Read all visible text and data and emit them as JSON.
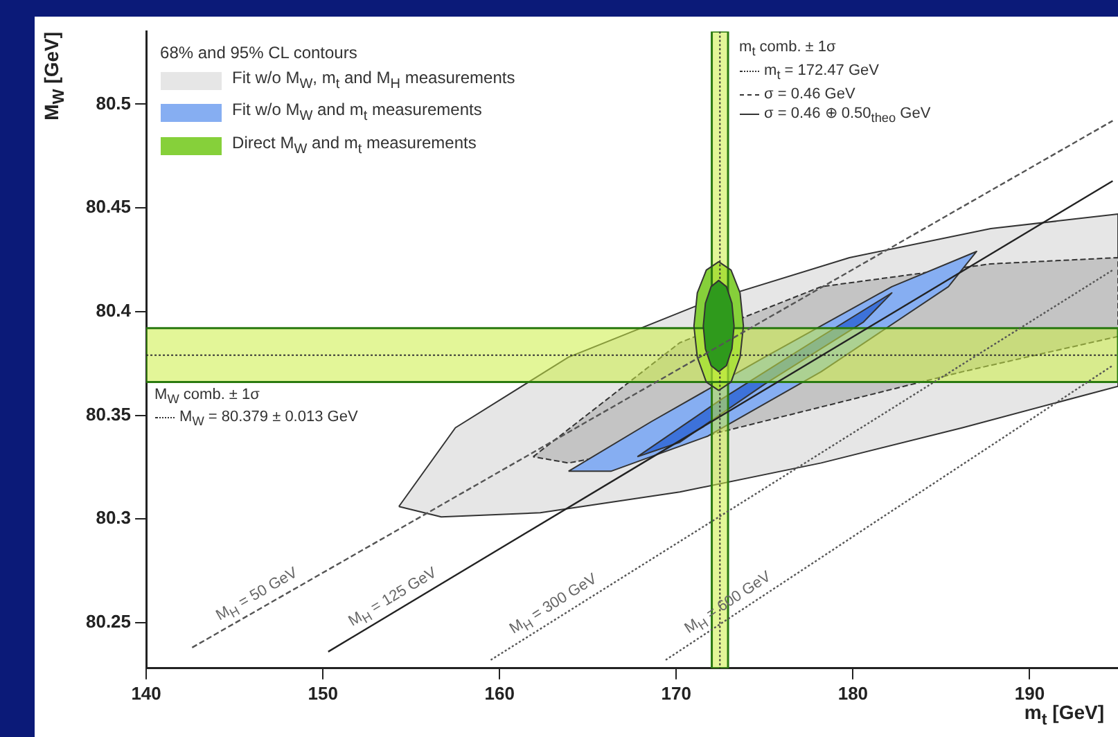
{
  "chart_data": {
    "type": "line",
    "xlabel": "m$_{t}$ [GeV]",
    "ylabel": "M$_{W}$ [GeV]",
    "legend_title": "68% and 95% CL contours",
    "legend": "top left",
    "xlim": [
      140,
      195
    ],
    "ylim": [
      80.228,
      80.535
    ],
    "xticks": [
      140,
      150,
      160,
      170,
      180,
      190
    ],
    "yticks": [
      80.25,
      80.3,
      80.35,
      80.4,
      80.45,
      80.5
    ],
    "series": [
      {
        "type": "area",
        "name": "Fit w/o M$_{W}$, m$_{t}$ and M$_{H}$ measurements",
        "color": "#e6e6e6",
        "line_style": "solid",
        "x": [
          154.3,
          157.5,
          163.9,
          171.8,
          179.8,
          187.8,
          195,
          195,
          186.2,
          178.2,
          170.2,
          162.3,
          156.7
        ],
        "values": [
          80.306,
          80.344,
          80.378,
          80.405,
          80.426,
          80.44,
          80.447,
          80.364,
          80.344,
          80.327,
          80.313,
          80.303,
          80.301
        ]
      },
      {
        "type": "area",
        "color": "#c4c4c4",
        "line_style": "dashed",
        "x": [
          161.9,
          170.2,
          178.2,
          187.8,
          195,
          195,
          186.2,
          178.2,
          170.2,
          163.9
        ],
        "values": [
          80.33,
          80.385,
          80.412,
          80.423,
          80.426,
          80.388,
          80.371,
          80.354,
          80.337,
          80.327
        ]
      },
      {
        "type": "area",
        "name": "Fit w/o M$_{W}$ and m$_{t}$ measurements",
        "color": "#86aef2",
        "line_style": "solid",
        "x": [
          163.9,
          168.6,
          175,
          182.2,
          187,
          185.4,
          178.2,
          171.8,
          166.3
        ],
        "values": [
          80.323,
          80.347,
          80.378,
          80.412,
          80.429,
          80.412,
          80.371,
          80.34,
          80.323
        ]
      },
      {
        "type": "area",
        "color": "#3d72da",
        "line_style": "solid",
        "x": [
          167.8,
          172.6,
          178.2,
          182.2,
          180.6,
          175,
          170.2
        ],
        "values": [
          80.33,
          80.358,
          80.388,
          80.409,
          80.395,
          80.365,
          80.337
        ]
      },
      {
        "type": "area",
        "name": "Direct M$_{W}$ and m$_{t}$ measurements",
        "color": "#86d03a",
        "line_style": "solid",
        "x": [
          173.8,
          173.61,
          173.1,
          172.4,
          171.7,
          171.19,
          171,
          171.19,
          171.7,
          172.4,
          173.1,
          173.61
        ],
        "values": [
          80.393,
          80.409,
          80.42,
          80.424,
          80.42,
          80.409,
          80.393,
          80.378,
          80.366,
          80.362,
          80.366,
          80.378
        ]
      },
      {
        "type": "area",
        "color": "#2f9a1c",
        "line_style": "solid",
        "x": [
          173.27,
          173.15,
          172.84,
          172.4,
          171.97,
          171.65,
          171.53,
          171.65,
          171.97,
          172.4,
          172.84,
          173.15
        ],
        "values": [
          80.393,
          80.404,
          80.412,
          80.415,
          80.412,
          80.404,
          80.393,
          80.382,
          80.374,
          80.371,
          80.374,
          80.382
        ]
      },
      {
        "type": "line",
        "color": "#555555",
        "line_style": "dashed",
        "x": [
          142.6,
          194.7
        ],
        "values": [
          80.238,
          80.492
        ]
      },
      {
        "type": "line",
        "color": "#222222",
        "line_style": "solid",
        "x": [
          150.3,
          194.7
        ],
        "values": [
          80.236,
          80.463
        ]
      },
      {
        "type": "line",
        "color": "#555555",
        "line_style": "dotted",
        "x": [
          159.5,
          194.7
        ],
        "values": [
          80.232,
          80.42
        ]
      },
      {
        "type": "line",
        "color": "#555555",
        "line_style": "dotted",
        "x": [
          169.4,
          194.7
        ],
        "values": [
          80.232,
          80.374
        ]
      }
    ],
    "bands": [
      {
        "axis": "x",
        "from": 172.01,
        "to": 172.93,
        "label": "m$_{t}$ comb. ± 1σ",
        "color": "#ccee44"
      },
      {
        "axis": "y",
        "from": 80.366,
        "to": 80.392,
        "label": "M$_{W}$ comb. ± 1σ",
        "color": "#ccee44"
      }
    ],
    "ref_lines": [
      {
        "axis": "x",
        "value": 172.47,
        "label": "m$_{t}$ = 172.47 GeV",
        "line_style": "dotted"
      },
      {
        "axis": "y",
        "value": 80.379,
        "label": "M$_{W}$ = 80.379 ± 0.013 GeV",
        "line_style": "dotted"
      }
    ],
    "annotations": [
      "σ = 0.46 GeV",
      "σ = 0.46 ⊕ 0.50$_{theo}$ GeV",
      "M$_{H}$ = 50 GeV",
      "M$_{H}$ = 125 GeV",
      "M$_{H}$ = 300 GeV",
      "M$_{H}$ = 600 GeV"
    ]
  }
}
